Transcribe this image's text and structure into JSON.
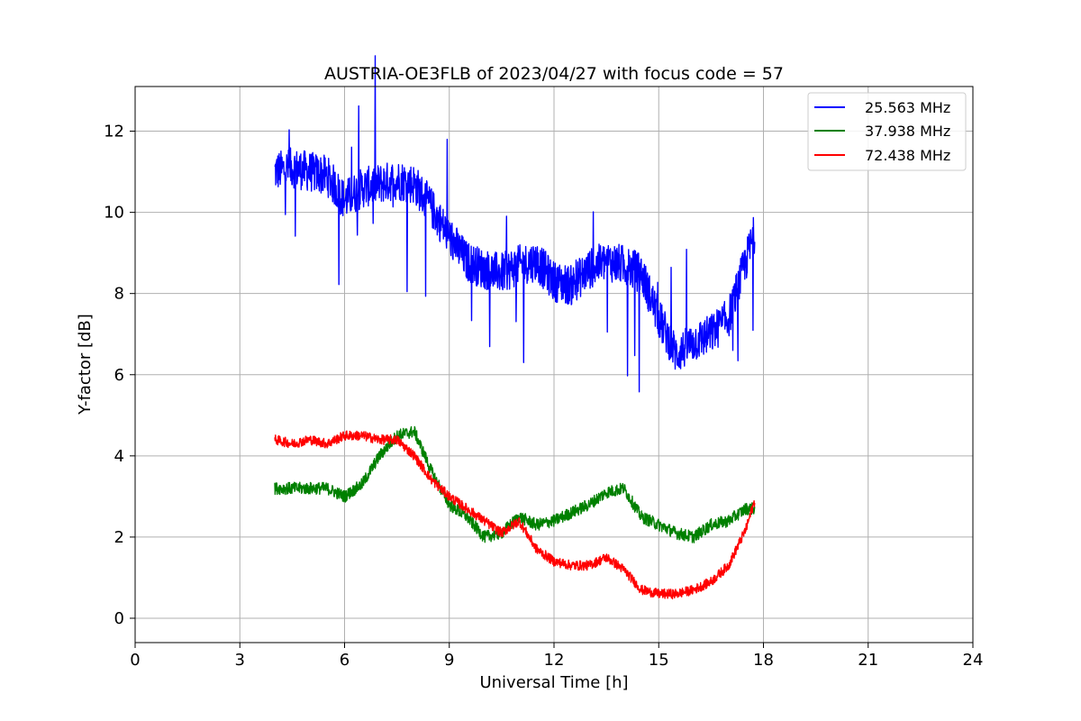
{
  "chart_data": {
    "type": "line",
    "title": "AUSTRIA-OE3FLB of 2023/04/27 with focus code = 57",
    "xlabel": "Universal Time [h]",
    "ylabel": "Y-factor [dB]",
    "xlim": [
      0,
      24
    ],
    "ylim": [
      -0.6,
      13.1
    ],
    "xticks": [
      0,
      3,
      6,
      9,
      12,
      15,
      18,
      21,
      24
    ],
    "yticks": [
      0,
      2,
      4,
      6,
      8,
      10,
      12
    ],
    "grid": true,
    "legend_position": "top-right",
    "series": [
      {
        "name": "25.563 MHz",
        "color": "#0000ff",
        "x": [
          4.0,
          4.5,
          5.0,
          5.5,
          6.0,
          6.5,
          7.0,
          7.5,
          8.0,
          8.5,
          9.0,
          9.5,
          10.0,
          10.5,
          11.0,
          11.5,
          12.0,
          12.5,
          13.0,
          13.5,
          14.0,
          14.5,
          15.0,
          15.5,
          16.0,
          16.5,
          17.0,
          17.5,
          17.75
        ],
        "y": [
          11.0,
          11.1,
          11.0,
          10.9,
          10.3,
          10.6,
          10.7,
          10.8,
          10.7,
          10.1,
          9.4,
          8.8,
          8.6,
          8.5,
          8.7,
          8.8,
          8.3,
          8.2,
          8.6,
          8.8,
          8.7,
          8.5,
          7.4,
          6.5,
          6.8,
          7.0,
          7.4,
          8.8,
          9.5
        ],
        "noise": 0.5
      },
      {
        "name": "37.938 MHz",
        "color": "#008000",
        "x": [
          4.0,
          4.5,
          5.0,
          5.5,
          6.0,
          6.5,
          7.0,
          7.5,
          8.0,
          8.5,
          9.0,
          9.5,
          10.0,
          10.5,
          11.0,
          11.5,
          12.0,
          12.5,
          13.0,
          13.5,
          14.0,
          14.5,
          15.0,
          15.5,
          16.0,
          16.5,
          17.0,
          17.5,
          17.75
        ],
        "y": [
          3.2,
          3.2,
          3.2,
          3.2,
          3.0,
          3.3,
          4.0,
          4.5,
          4.6,
          3.6,
          2.8,
          2.5,
          2.0,
          2.1,
          2.5,
          2.3,
          2.4,
          2.6,
          2.8,
          3.1,
          3.2,
          2.5,
          2.3,
          2.1,
          2.0,
          2.3,
          2.4,
          2.7,
          2.7
        ],
        "noise": 0.15
      },
      {
        "name": "72.438 MHz",
        "color": "#ff0000",
        "x": [
          4.0,
          4.5,
          5.0,
          5.5,
          6.0,
          6.5,
          7.0,
          7.5,
          8.0,
          8.5,
          9.0,
          9.5,
          10.0,
          10.5,
          11.0,
          11.5,
          12.0,
          12.5,
          13.0,
          13.5,
          14.0,
          14.5,
          15.0,
          15.5,
          16.0,
          16.5,
          17.0,
          17.5,
          17.75
        ],
        "y": [
          4.4,
          4.3,
          4.4,
          4.3,
          4.5,
          4.5,
          4.4,
          4.4,
          4.0,
          3.4,
          3.0,
          2.7,
          2.4,
          2.1,
          2.4,
          1.7,
          1.4,
          1.3,
          1.3,
          1.5,
          1.2,
          0.7,
          0.6,
          0.6,
          0.7,
          0.9,
          1.3,
          2.2,
          2.9
        ],
        "noise": 0.12
      }
    ]
  }
}
